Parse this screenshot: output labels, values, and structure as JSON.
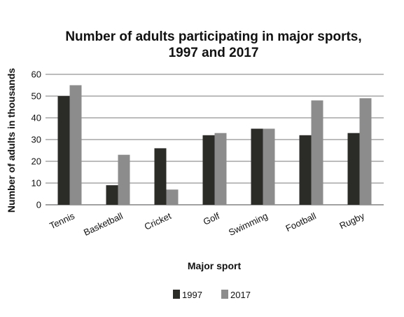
{
  "chart_data": {
    "type": "bar",
    "title_lines": [
      "Number of adults participating in major sports,",
      "1997 and 2017"
    ],
    "xlabel": "Major sport",
    "ylabel": "Number of adults in thousands",
    "categories": [
      "Tennis",
      "Basketball",
      "Cricket",
      "Golf",
      "Swimming",
      "Football",
      "Rugby"
    ],
    "series": [
      {
        "name": "1997",
        "color": "#2b2b28",
        "values": [
          50,
          9,
          26,
          32,
          35,
          32,
          33
        ]
      },
      {
        "name": "2017",
        "color": "#8c8c8c",
        "values": [
          55,
          23,
          7,
          33,
          35,
          48,
          49
        ]
      }
    ],
    "ylim": [
      0,
      60
    ],
    "yticks": [
      0,
      10,
      20,
      30,
      40,
      50,
      60
    ],
    "grid": true,
    "legend_position": "bottom"
  }
}
